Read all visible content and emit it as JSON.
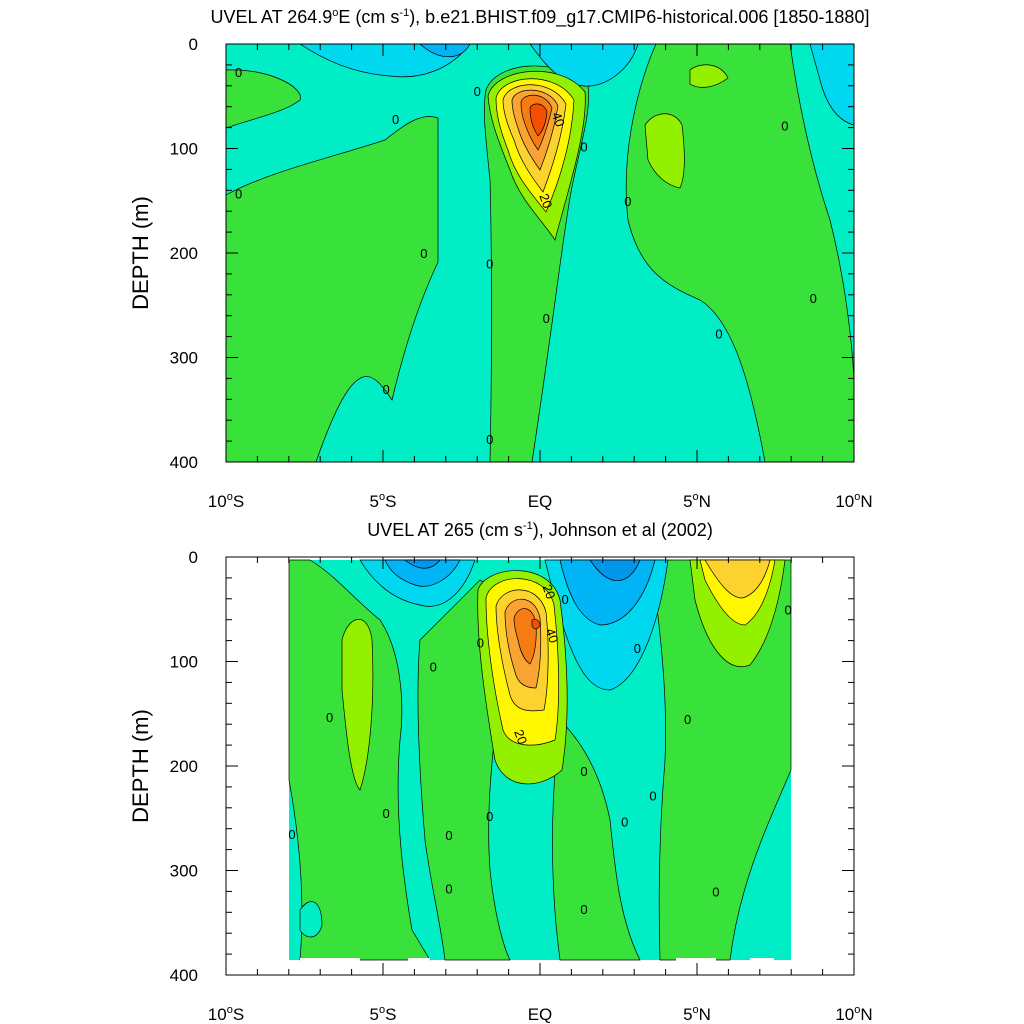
{
  "colors": {
    "pos_60": "#f24f00",
    "pos_50": "#f67b12",
    "pos_40": "#f8a332",
    "pos_30": "#fcd22e",
    "pos_20": "#fff700",
    "pos_10": "#93f000",
    "pos_0": "#38e23a",
    "neg_0": "#00edc6",
    "neg_10": "#00d8f0",
    "neg_20": "#00b4f5",
    "neg_30": "#0096ec",
    "line": "#000000"
  },
  "chart_data": [
    {
      "type": "contour",
      "title_prefix": "UVEL AT 264.9",
      "title_deg": "o",
      "title_mid": "E (cm s",
      "title_sup": "-1",
      "title_suffix": "), b.e21.BHIST.f09_g17.CMIP6-historical.006 [1850-1880]",
      "ylabel": "DEPTH (m)",
      "xlim": [
        -10,
        10
      ],
      "ylim": [
        0,
        400
      ],
      "y_reversed": true,
      "x_ticks": [
        {
          "value": -10,
          "label": "10",
          "deg": "o",
          "hemi": "S"
        },
        {
          "value": -5,
          "label": "5",
          "deg": "o",
          "hemi": "S"
        },
        {
          "value": 0,
          "label": "EQ",
          "deg": "",
          "hemi": ""
        },
        {
          "value": 5,
          "label": "5",
          "deg": "o",
          "hemi": "N"
        },
        {
          "value": 10,
          "label": "10",
          "deg": "o",
          "hemi": "N"
        }
      ],
      "y_ticks": [
        0,
        100,
        200,
        300,
        400
      ],
      "undercurrent_core": {
        "lat": 0.0,
        "depth_m": 75,
        "max_cm_s": 60
      },
      "contour_interval_cm_s": 10,
      "contour_labels": [
        {
          "text": "0",
          "lat": -9.6,
          "depth": 27
        },
        {
          "text": "0",
          "lat": -9.6,
          "depth": 143
        },
        {
          "text": "0",
          "lat": -4.6,
          "depth": 72
        },
        {
          "text": "0",
          "lat": -3.7,
          "depth": 200
        },
        {
          "text": "0",
          "lat": -4.9,
          "depth": 330
        },
        {
          "text": "0",
          "lat": -2.0,
          "depth": 45
        },
        {
          "text": "0",
          "lat": -1.6,
          "depth": 210
        },
        {
          "text": "0",
          "lat": -1.6,
          "depth": 378
        },
        {
          "text": "0",
          "lat": 0.2,
          "depth": 262
        },
        {
          "text": "40",
          "lat": 0.6,
          "depth": 72
        },
        {
          "text": "20",
          "lat": 0.2,
          "depth": 150
        },
        {
          "text": "0",
          "lat": 1.4,
          "depth": 98
        },
        {
          "text": "0",
          "lat": 2.8,
          "depth": 150
        },
        {
          "text": "0",
          "lat": 5.7,
          "depth": 277
        },
        {
          "text": "0",
          "lat": 7.8,
          "depth": 78
        },
        {
          "text": "0",
          "lat": 8.7,
          "depth": 243
        }
      ]
    },
    {
      "type": "contour",
      "title_prefix": "UVEL AT 265 (cm s",
      "title_deg": "",
      "title_mid": "",
      "title_sup": "-1",
      "title_suffix": "), Johnson et al (2002)",
      "ylabel": "DEPTH (m)",
      "xlim": [
        -10,
        10
      ],
      "ylim": [
        0,
        400
      ],
      "y_reversed": true,
      "data_extent_lat": [
        -8,
        8
      ],
      "x_ticks": [
        {
          "value": -10,
          "label": "10",
          "deg": "o",
          "hemi": "S"
        },
        {
          "value": -5,
          "label": "5",
          "deg": "o",
          "hemi": "S"
        },
        {
          "value": 0,
          "label": "EQ",
          "deg": "",
          "hemi": ""
        },
        {
          "value": 5,
          "label": "5",
          "deg": "o",
          "hemi": "N"
        },
        {
          "value": 10,
          "label": "10",
          "deg": "o",
          "hemi": "N"
        }
      ],
      "y_ticks": [
        0,
        100,
        200,
        300,
        400
      ],
      "undercurrent_core": {
        "lat": -0.1,
        "depth_m": 65,
        "max_cm_s": 60
      },
      "contour_interval_cm_s": 10,
      "contour_labels": [
        {
          "text": "20",
          "lat": 0.3,
          "depth": 33
        },
        {
          "text": "0",
          "lat": 0.8,
          "depth": 40
        },
        {
          "text": "40",
          "lat": 0.4,
          "depth": 75
        },
        {
          "text": "20",
          "lat": -0.6,
          "depth": 172
        },
        {
          "text": "0",
          "lat": 7.9,
          "depth": 50
        },
        {
          "text": "0",
          "lat": 3.1,
          "depth": 87
        },
        {
          "text": "0",
          "lat": -1.9,
          "depth": 82
        },
        {
          "text": "0",
          "lat": -3.4,
          "depth": 105
        },
        {
          "text": "0",
          "lat": -6.7,
          "depth": 153
        },
        {
          "text": "0",
          "lat": 4.7,
          "depth": 155
        },
        {
          "text": "0",
          "lat": 1.4,
          "depth": 205
        },
        {
          "text": "0",
          "lat": 3.6,
          "depth": 228
        },
        {
          "text": "0",
          "lat": -4.9,
          "depth": 245
        },
        {
          "text": "0",
          "lat": -1.6,
          "depth": 248
        },
        {
          "text": "0",
          "lat": 2.7,
          "depth": 253
        },
        {
          "text": "0",
          "lat": -7.9,
          "depth": 265
        },
        {
          "text": "0",
          "lat": -2.9,
          "depth": 266
        },
        {
          "text": "0",
          "lat": -2.9,
          "depth": 317
        },
        {
          "text": "0",
          "lat": 5.6,
          "depth": 320
        },
        {
          "text": "0",
          "lat": 1.4,
          "depth": 337
        }
      ]
    }
  ]
}
